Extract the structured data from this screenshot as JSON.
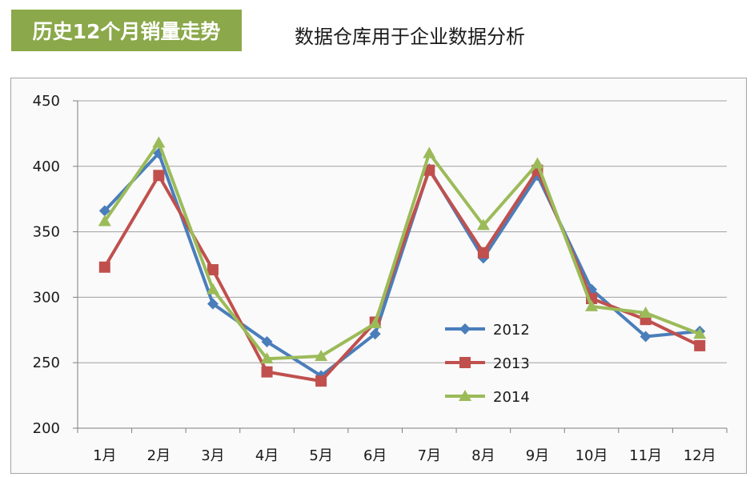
{
  "header": {
    "badge_title": "历史12个月销量走势",
    "subtitle": "数据仓库用于企业数据分析"
  },
  "colors": {
    "badge_bg": "#8ba84a",
    "grid": "#a0a0a0",
    "axis": "#7f7f7f"
  },
  "chart_data": {
    "type": "line",
    "title": "",
    "xlabel": "",
    "ylabel": "",
    "categories": [
      "1月",
      "2月",
      "3月",
      "4月",
      "5月",
      "6月",
      "7月",
      "8月",
      "9月",
      "10月",
      "11月",
      "12月"
    ],
    "ylim": [
      200,
      450
    ],
    "yticks": [
      200,
      250,
      300,
      350,
      400,
      450
    ],
    "grid": true,
    "legend_position": "bottom-right",
    "series": [
      {
        "name": "2012",
        "color": "#4a7ebb",
        "marker": "diamond",
        "values": [
          366,
          410,
          295,
          266,
          240,
          272,
          398,
          330,
          393,
          306,
          270,
          274
        ]
      },
      {
        "name": "2013",
        "color": "#c0504d",
        "marker": "square",
        "values": [
          323,
          393,
          321,
          243,
          236,
          281,
          397,
          334,
          397,
          299,
          283,
          263
        ]
      },
      {
        "name": "2014",
        "color": "#9bbb59",
        "marker": "triangle",
        "values": [
          358,
          418,
          306,
          253,
          255,
          280,
          410,
          355,
          402,
          293,
          288,
          272
        ]
      }
    ]
  }
}
